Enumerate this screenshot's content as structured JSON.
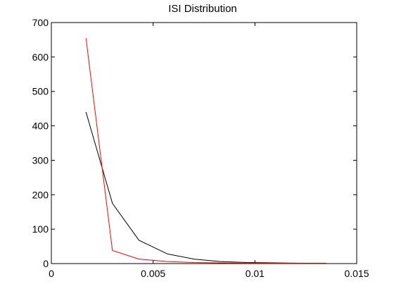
{
  "chart_data": {
    "type": "line",
    "title": "ISI Distribution",
    "xlabel": "",
    "ylabel": "",
    "xlim": [
      0,
      0.015
    ],
    "ylim": [
      0,
      700
    ],
    "xticks": [
      0,
      0.005,
      0.01,
      0.015
    ],
    "xtick_labels": [
      "0",
      "0.005",
      "0.01",
      "0.015"
    ],
    "yticks": [
      0,
      100,
      200,
      300,
      400,
      500,
      600,
      700
    ],
    "ytick_labels": [
      "0",
      "100",
      "200",
      "300",
      "400",
      "500",
      "600",
      "700"
    ],
    "grid": false,
    "legend": "none",
    "series": [
      {
        "color": "#000000",
        "x": [
          0.0017,
          0.003,
          0.0043,
          0.0057,
          0.007,
          0.0083,
          0.0096,
          0.011,
          0.0123,
          0.0135
        ],
        "y": [
          440,
          175,
          68,
          28,
          13,
          6,
          3,
          2,
          1,
          1
        ]
      },
      {
        "color": "#ff0000",
        "x": [
          0.0017,
          0.003,
          0.0043,
          0.0057,
          0.007,
          0.0083,
          0.0096,
          0.011,
          0.0123,
          0.0135
        ],
        "y": [
          655,
          38,
          13,
          6,
          3,
          2,
          1,
          1,
          0.5,
          0.5
        ]
      }
    ]
  }
}
